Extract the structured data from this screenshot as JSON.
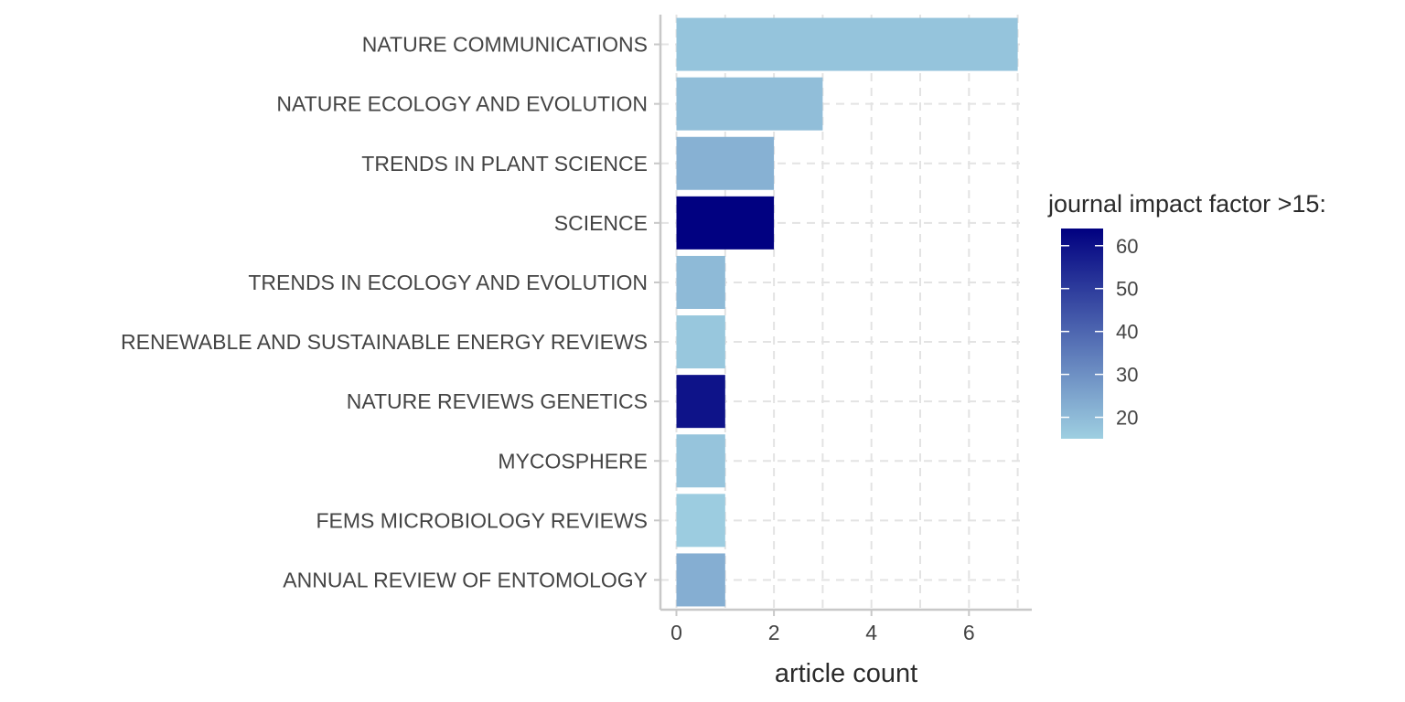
{
  "chart_data": {
    "type": "bar",
    "orientation": "horizontal",
    "categories": [
      "NATURE COMMUNICATIONS",
      "NATURE ECOLOGY AND EVOLUTION",
      "TRENDS IN PLANT SCIENCE",
      "SCIENCE",
      "TRENDS IN ECOLOGY AND EVOLUTION",
      "RENEWABLE AND SUSTAINABLE ENERGY REVIEWS",
      "NATURE REVIEWS GENETICS",
      "MYCOSPHERE",
      "FEMS MICROBIOLOGY REVIEWS",
      "ANNUAL REVIEW OF ENTOMOLOGY"
    ],
    "values": [
      7,
      3,
      2,
      2,
      1,
      1,
      1,
      1,
      1,
      1
    ],
    "impact_factor": [
      17.7,
      19,
      22.0,
      63.7,
      20.0,
      16.8,
      59.6,
      17.5,
      15.6,
      22.7
    ],
    "xlabel": "article count",
    "ylabel": "",
    "xlim": [
      -0.35,
      7.35
    ],
    "xticks": [
      0,
      2,
      4,
      6
    ],
    "grid": true,
    "legend": {
      "title": "journal impact factor >15:",
      "placement": "right",
      "range": [
        15,
        64
      ],
      "ticks": [
        20,
        30,
        40,
        50,
        60
      ],
      "color_low": "#9ecfe1",
      "color_high": "#000080"
    }
  }
}
